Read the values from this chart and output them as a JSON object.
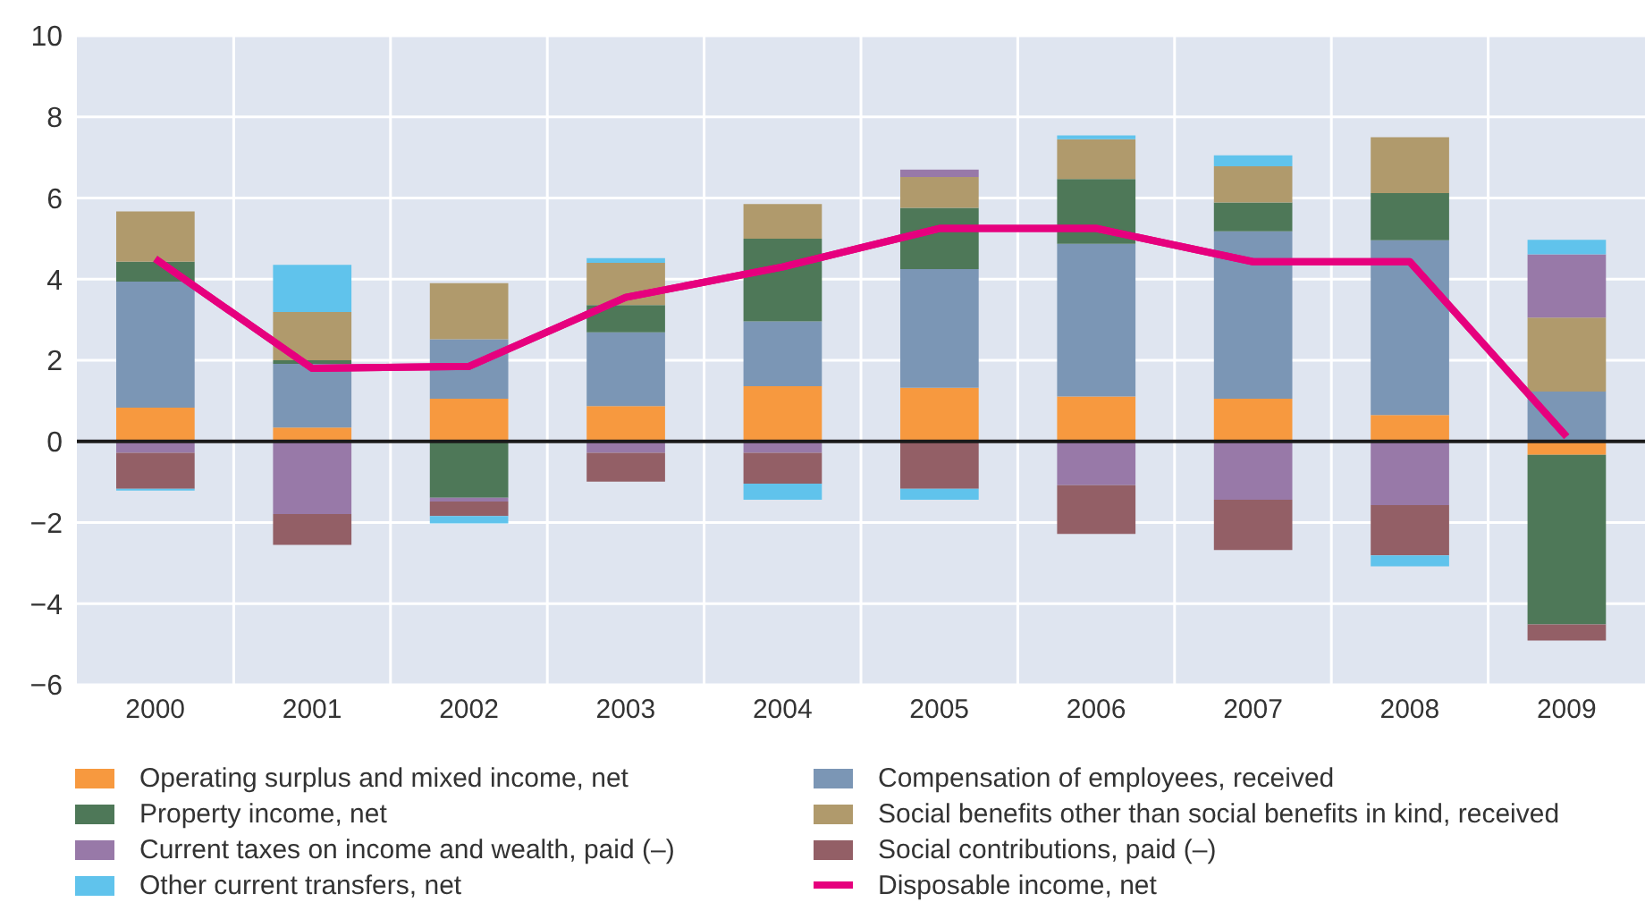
{
  "chart_data": {
    "type": "bar",
    "stacked": true,
    "categories": [
      "2000",
      "2001",
      "2002",
      "2003",
      "2004",
      "2005",
      "2006",
      "2007",
      "2008",
      "2009"
    ],
    "series": [
      {
        "name": "Operating surplus and mixed income, net",
        "color": "#f7993f",
        "values": [
          0.83,
          0.34,
          1.05,
          0.87,
          1.36,
          1.32,
          1.11,
          1.05,
          0.65,
          -0.33
        ]
      },
      {
        "name": "Compensation of employees, received",
        "color": "#7b96b5",
        "values": [
          3.11,
          1.57,
          1.47,
          1.82,
          1.6,
          2.93,
          3.76,
          4.13,
          4.31,
          1.23
        ]
      },
      {
        "name": "Property income, net",
        "color": "#4e7858",
        "values": [
          0.49,
          0.09,
          -1.39,
          0.67,
          2.04,
          1.51,
          1.6,
          0.71,
          1.16,
          -4.18
        ]
      },
      {
        "name": "Social benefits other than social benefits in kind, received",
        "color": "#b09a6c",
        "values": [
          1.24,
          1.19,
          1.38,
          1.04,
          0.85,
          0.76,
          0.98,
          0.89,
          1.38,
          1.82
        ]
      },
      {
        "name": "Current taxes on income and wealth, paid (–)",
        "color": "#9879a8",
        "values": [
          -0.28,
          -1.79,
          -0.09,
          -0.28,
          -0.28,
          0.18,
          -1.08,
          -1.44,
          -1.57,
          1.56
        ]
      },
      {
        "name": "Social contributions, paid (–)",
        "color": "#935f66",
        "values": [
          -0.89,
          -0.76,
          -0.36,
          -0.71,
          -0.76,
          -1.17,
          -1.2,
          -1.24,
          -1.24,
          -0.4
        ]
      },
      {
        "name": "Other current transfers, net",
        "color": "#60c3ec",
        "values": [
          -0.04,
          1.16,
          -0.18,
          0.12,
          -0.4,
          -0.27,
          0.09,
          0.27,
          -0.27,
          0.36
        ]
      },
      {
        "name": "Disposable income, net",
        "type": "line",
        "color": "#e6007e",
        "marker": "none",
        "values": [
          4.5,
          1.8,
          1.85,
          3.55,
          4.3,
          5.25,
          5.25,
          4.43,
          4.43,
          0.12
        ]
      }
    ],
    "ylim": [
      -6,
      10
    ],
    "yticks": [
      -6,
      -4,
      -2,
      0,
      2,
      4,
      6,
      8,
      10
    ],
    "ref_lines": [
      {
        "axis": "y",
        "value": 0,
        "color": "#1a1a1a"
      }
    ],
    "grid": true,
    "legend": "bottom"
  }
}
